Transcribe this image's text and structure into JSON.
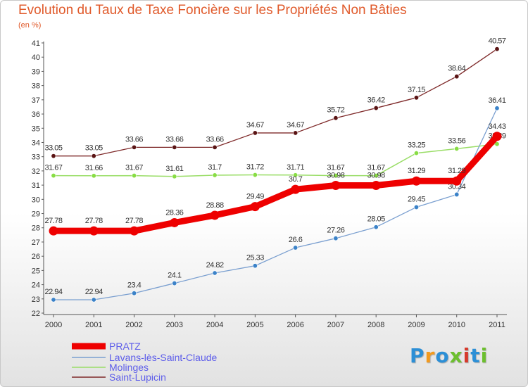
{
  "title": "Evolution du Taux de Taxe Foncière sur les Propriétés Non Bâties",
  "unit_label": "(en %)",
  "logo": {
    "letters": [
      "P",
      "r",
      "o",
      "x",
      "i",
      "t",
      "i"
    ],
    "colors": [
      "#2c8fd6",
      "#f29a1f",
      "#2c8fd6",
      "#6cbf2e",
      "#d63a2c",
      "#2c8fd6",
      "#6cbf2e"
    ]
  },
  "chart_data": {
    "type": "line",
    "x": [
      "2000",
      "2001",
      "2002",
      "2003",
      "2004",
      "2005",
      "2006",
      "2007",
      "2008",
      "2009",
      "2010",
      "2011"
    ],
    "ylim": [
      22,
      41
    ],
    "yticks": [
      22,
      23,
      24,
      25,
      26,
      27,
      28,
      29,
      30,
      31,
      32,
      33,
      34,
      35,
      36,
      37,
      38,
      39,
      40,
      41
    ],
    "legend_position": "bottom-left",
    "grid": false,
    "series": [
      {
        "name": "Saint-Lupicin",
        "color": "#7f2a2a",
        "marker": "#5a1414",
        "width": 1.3,
        "values": [
          33.05,
          33.05,
          33.66,
          33.66,
          33.66,
          34.67,
          34.67,
          35.72,
          36.42,
          37.15,
          38.64,
          40.57
        ],
        "labels": [
          "33.05",
          "33.05",
          "33.66",
          "33.66",
          "33.66",
          "34.67",
          "34.67",
          "35.72",
          "36.42",
          "37.15",
          "38.64",
          "40.57"
        ]
      },
      {
        "name": "Molinges",
        "color": "#99dd66",
        "marker": "#88dd44",
        "width": 1.5,
        "values": [
          31.67,
          31.66,
          31.67,
          31.61,
          31.7,
          31.72,
          31.71,
          31.67,
          31.67,
          33.25,
          33.56,
          33.89
        ],
        "labels": [
          "31.67",
          "31.66",
          "31.67",
          "31.61",
          "31.7",
          "31.72",
          "31.71",
          "31.67",
          "31.67",
          "33.25",
          "33.56",
          "33.89"
        ]
      },
      {
        "name": "Lavans-lès-Saint-Claude",
        "color": "#7a9fd0",
        "marker": "#3b82c8",
        "width": 1.3,
        "values": [
          22.94,
          22.94,
          23.4,
          24.1,
          24.82,
          25.33,
          26.6,
          27.26,
          28.05,
          29.45,
          30.34,
          36.41
        ],
        "labels": [
          "22.94",
          "22.94",
          "23.4",
          "24.1",
          "24.82",
          "25.33",
          "26.6",
          "27.26",
          "28.05",
          "29.45",
          "30.34",
          "36.41"
        ]
      },
      {
        "name": "PRATZ",
        "color": "#ee0000",
        "marker": "#ee0000",
        "width": 9,
        "values": [
          27.78,
          27.78,
          27.78,
          28.36,
          28.88,
          29.49,
          30.7,
          30.98,
          30.98,
          31.29,
          31.29,
          34.43
        ],
        "labels": [
          "27.78",
          "27.78",
          "27.78",
          "28.36",
          "28.88",
          "29.49",
          "30.7",
          "30.98",
          "30.98",
          "31.29",
          "31.29",
          "34.43"
        ]
      }
    ],
    "legend": [
      "PRATZ",
      "Lavans-lès-Saint-Claude",
      "Molinges",
      "Saint-Lupicin"
    ]
  }
}
